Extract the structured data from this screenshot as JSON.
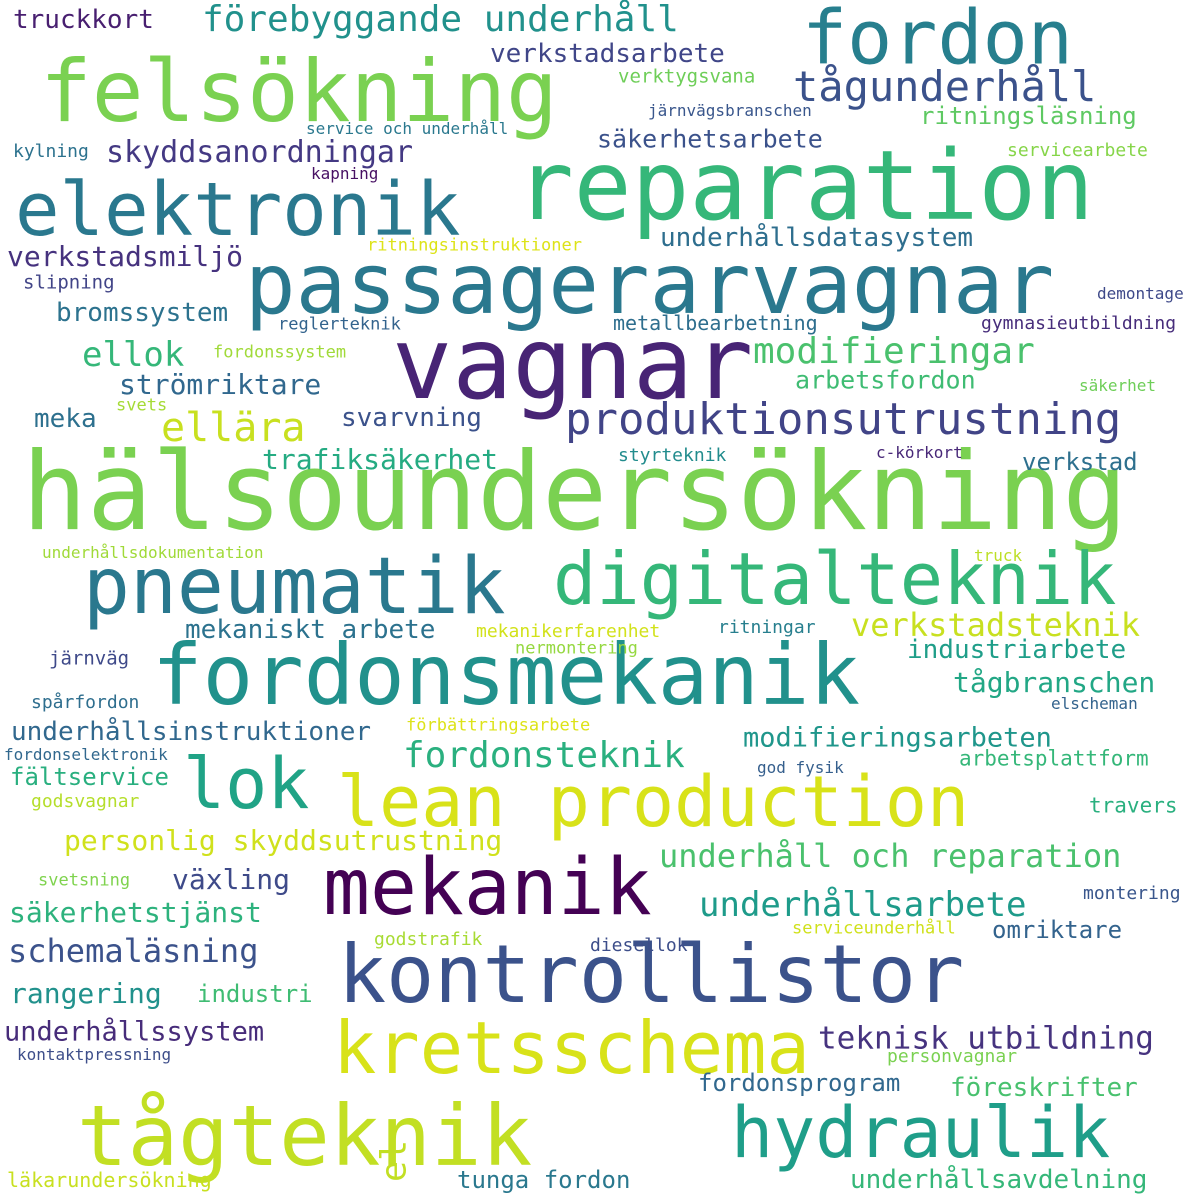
{
  "words": [
    {
      "text": "hälsoundersökning",
      "color": "#7ad151"
    },
    {
      "text": "reparation",
      "color": "#35b779"
    },
    {
      "text": "passagerarvagnar",
      "color": "#2a788e"
    },
    {
      "text": "vagnar",
      "color": "#482475"
    },
    {
      "text": "felsökning",
      "color": "#7ad151"
    },
    {
      "text": "fordon",
      "color": "#277f8e"
    },
    {
      "text": "elektronik",
      "color": "#2a788e"
    },
    {
      "text": "pneumatik",
      "color": "#2a788e"
    },
    {
      "text": "digitalteknik",
      "color": "#35b779"
    },
    {
      "text": "fordonsmekanik",
      "color": "#21918c"
    },
    {
      "text": "lok",
      "color": "#20a386"
    },
    {
      "text": "lean production",
      "color": "#d8e219"
    },
    {
      "text": "mekanik",
      "color": "#440154"
    },
    {
      "text": "kontrollistor",
      "color": "#3b528b"
    },
    {
      "text": "kretsschema",
      "color": "#d8e219"
    },
    {
      "text": "tågteknik",
      "color": "#c2df23"
    },
    {
      "text": "hydraulik",
      "color": "#1f9e89"
    },
    {
      "text": "produktionsutrustning",
      "color": "#414487"
    },
    {
      "text": "tågunderhåll",
      "color": "#3b528b"
    },
    {
      "text": "förebyggande underhåll",
      "color": "#21918c"
    },
    {
      "text": "truckkort",
      "color": "#481f70"
    },
    {
      "text": "verkstadsarbete",
      "color": "#404688"
    },
    {
      "text": "verktygsvana",
      "color": "#6ece58"
    },
    {
      "text": "järnvägsbranschen",
      "color": "#39568c"
    },
    {
      "text": "ritningsläsning",
      "color": "#5ec962"
    },
    {
      "text": "service och underhåll",
      "color": "#2a788e"
    },
    {
      "text": "kylning",
      "color": "#2c728e"
    },
    {
      "text": "skyddsanordningar",
      "color": "#443983"
    },
    {
      "text": "säkerhetsarbete",
      "color": "#3b528b"
    },
    {
      "text": "servicearbete",
      "color": "#86d549"
    },
    {
      "text": "kapning",
      "color": "#471063"
    },
    {
      "text": "underhållsdatasystem",
      "color": "#2e6e8e"
    },
    {
      "text": "ritningsinstruktioner",
      "color": "#dde318"
    },
    {
      "text": "verkstadsmiljö",
      "color": "#46327e"
    },
    {
      "text": "slipning",
      "color": "#414487"
    },
    {
      "text": "demontage",
      "color": "#3e4989"
    },
    {
      "text": "bromssystem",
      "color": "#2c728e"
    },
    {
      "text": "reglerteknik",
      "color": "#33638d"
    },
    {
      "text": "metallbearbetning",
      "color": "#2e6e8e"
    },
    {
      "text": "gymnasieutbildning",
      "color": "#472d7b"
    },
    {
      "text": "ellok",
      "color": "#35b779"
    },
    {
      "text": "fordonssystem",
      "color": "#a0da39"
    },
    {
      "text": "modifieringar",
      "color": "#4ac16d"
    },
    {
      "text": "strömriktare",
      "color": "#31688e"
    },
    {
      "text": "arbetsfordon",
      "color": "#3fbc73"
    },
    {
      "text": "säkerhet",
      "color": "#6ece58"
    },
    {
      "text": "svets",
      "color": "#a5db36"
    },
    {
      "text": "meka",
      "color": "#2d708e"
    },
    {
      "text": "ellära",
      "color": "#c8e020"
    },
    {
      "text": "svarvning",
      "color": "#3b528b"
    },
    {
      "text": "trafiksäkerhet",
      "color": "#25ab82"
    },
    {
      "text": "styrteknik",
      "color": "#228c8d"
    },
    {
      "text": "c-körkort",
      "color": "#482878"
    },
    {
      "text": "verkstad",
      "color": "#2d708e"
    },
    {
      "text": "underhållsdokumentation",
      "color": "#a0da39"
    },
    {
      "text": "truck",
      "color": "#bddf26"
    },
    {
      "text": "mekaniskt arbete",
      "color": "#2c728e"
    },
    {
      "text": "mekanikerfarenhet",
      "color": "#d2e21b"
    },
    {
      "text": "ritningar",
      "color": "#277f8e"
    },
    {
      "text": "verkstadsteknik",
      "color": "#c8e020"
    },
    {
      "text": "järnväg",
      "color": "#3e4989"
    },
    {
      "text": "nermontering",
      "color": "#95d840"
    },
    {
      "text": "industriarbete",
      "color": "#1f9e89"
    },
    {
      "text": "tågbranschen",
      "color": "#22a785"
    },
    {
      "text": "spårfordon",
      "color": "#2e6e8e"
    },
    {
      "text": "underhållsinstruktioner",
      "color": "#31688e"
    },
    {
      "text": "förbättringsarbete",
      "color": "#dde318"
    },
    {
      "text": "elscheman",
      "color": "#33638d"
    },
    {
      "text": "fordonsteknik",
      "color": "#2ab07f"
    },
    {
      "text": "modifieringsarbeten",
      "color": "#1f968b"
    },
    {
      "text": "fordonselektronik",
      "color": "#31688e"
    },
    {
      "text": "fältservice",
      "color": "#29af7f"
    },
    {
      "text": "god fysik",
      "color": "#355f8d"
    },
    {
      "text": "arbetsplattform",
      "color": "#35b779"
    },
    {
      "text": "godsvagnar",
      "color": "#b5de2b"
    },
    {
      "text": "travers",
      "color": "#2ab07f"
    },
    {
      "text": "personlig skyddsutrustning",
      "color": "#d0e11c"
    },
    {
      "text": "underhåll och reparation",
      "color": "#4ac16d"
    },
    {
      "text": "växling",
      "color": "#3e4a89"
    },
    {
      "text": "svetsning",
      "color": "#7fd34e"
    },
    {
      "text": "montering",
      "color": "#39568c"
    },
    {
      "text": "säkerhetstjänst",
      "color": "#2db27d"
    },
    {
      "text": "underhållsarbete",
      "color": "#1e9b8a"
    },
    {
      "text": "schemaläsning",
      "color": "#3b528b"
    },
    {
      "text": "godstrafik",
      "color": "#a8db34"
    },
    {
      "text": "diesellok",
      "color": "#3d4e8a"
    },
    {
      "text": "serviceunderhåll",
      "color": "#d0e11c"
    },
    {
      "text": "omriktare",
      "color": "#33638d"
    },
    {
      "text": "rangering",
      "color": "#21918c"
    },
    {
      "text": "industri",
      "color": "#3fbc73"
    },
    {
      "text": "underhållssystem",
      "color": "#472c7a"
    },
    {
      "text": "teknisk utbildning",
      "color": "#46337f"
    },
    {
      "text": "kontaktpressning",
      "color": "#3d4e8a"
    },
    {
      "text": "personvagnar",
      "color": "#7ad151"
    },
    {
      "text": "fordonsprogram",
      "color": "#31688e"
    },
    {
      "text": "föreskrifter",
      "color": "#48c16e"
    },
    {
      "text": "el",
      "color": "#c2df23"
    },
    {
      "text": "tunga fordon",
      "color": "#2a788e"
    },
    {
      "text": "underhållsavdelning",
      "color": "#35b779"
    },
    {
      "text": "läkarundersökning",
      "color": "#c8e020"
    }
  ]
}
